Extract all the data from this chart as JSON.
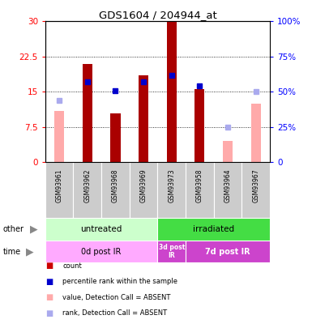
{
  "title": "GDS1604 / 204944_at",
  "samples": [
    "GSM93961",
    "GSM93962",
    "GSM93968",
    "GSM93969",
    "GSM93973",
    "GSM93958",
    "GSM93964",
    "GSM93967"
  ],
  "count_values": [
    null,
    21.0,
    10.5,
    18.5,
    30.0,
    15.5,
    null,
    null
  ],
  "count_absent": [
    11.0,
    null,
    null,
    null,
    null,
    null,
    4.5,
    12.5
  ],
  "rank_values": [
    null,
    57.0,
    51.0,
    57.0,
    62.0,
    54.0,
    null,
    null
  ],
  "rank_absent": [
    44.0,
    null,
    null,
    null,
    null,
    null,
    25.0,
    50.0
  ],
  "ylim_left": [
    0,
    30
  ],
  "ylim_right": [
    0,
    100
  ],
  "yticks_left": [
    0,
    7.5,
    15,
    22.5,
    30
  ],
  "yticks_right": [
    0,
    25,
    50,
    75,
    100
  ],
  "ytick_labels_left": [
    "0",
    "7.5",
    "15",
    "22.5",
    "30"
  ],
  "ytick_labels_right": [
    "0",
    "25%",
    "50%",
    "75%",
    "100%"
  ],
  "bar_color": "#aa0000",
  "bar_absent_color": "#ffaaaa",
  "rank_color": "#0000cc",
  "rank_absent_color": "#aaaaee",
  "group_other": [
    {
      "label": "untreated",
      "start": 0,
      "end": 4,
      "color": "#ccffcc"
    },
    {
      "label": "irradiated",
      "start": 4,
      "end": 8,
      "color": "#44dd44"
    }
  ],
  "group_time": [
    {
      "label": "0d post IR",
      "start": 0,
      "end": 4,
      "color": "#ffaaff"
    },
    {
      "label": "3d post\nIR",
      "start": 4,
      "end": 5,
      "color": "#cc44cc"
    },
    {
      "label": "7d post IR",
      "start": 5,
      "end": 8,
      "color": "#cc44cc"
    }
  ],
  "legend_items": [
    {
      "label": "count",
      "color": "#cc0000"
    },
    {
      "label": "percentile rank within the sample",
      "color": "#0000cc"
    },
    {
      "label": "value, Detection Call = ABSENT",
      "color": "#ffaaaa"
    },
    {
      "label": "rank, Detection Call = ABSENT",
      "color": "#aaaaee"
    }
  ],
  "bar_width": 0.35,
  "label_color": "#888888",
  "cell_color": "#cccccc"
}
